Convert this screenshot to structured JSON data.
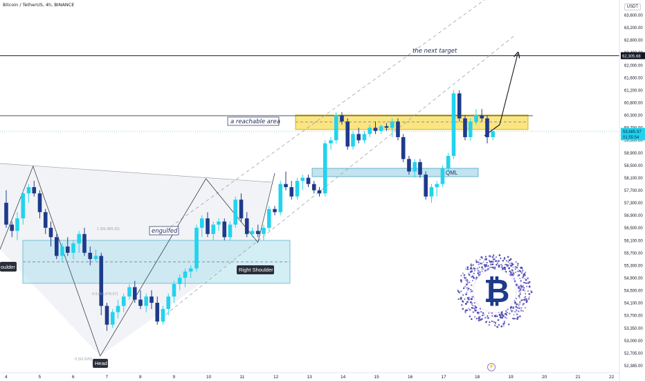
{
  "header": {
    "symbol": "Bitcoin / TetherUS, 4h, BINANCE",
    "currency": "USDT"
  },
  "price_tags": {
    "target": "62,305.68",
    "current": "59,885.97",
    "countdown": "01:55:54"
  },
  "annotations": {
    "next_target": "the next target",
    "reachable_area": "a reachable area",
    "engulfed": "engulfed",
    "qml": "QML",
    "head": "Head",
    "right_shoulder": "Right Shoulder",
    "left_shoulder": "oulder",
    "fib_top": "1 (56,483.32)",
    "fib_mid": "0.5 (54,479.37)",
    "fib_bottom": "0 (52,520)"
  },
  "logo": {
    "glyph": "₿",
    "name": "bitcoin-logo"
  },
  "colors": {
    "up": "#22d3ee",
    "down": "#1e3a8a",
    "reachable_zone": "#f9e06b",
    "qml_zone": "#a7d8ea",
    "shoulder_zone": "#b6e2ef",
    "target_line": "#131722",
    "trend": "#9aa0a6"
  },
  "chart_data": {
    "type": "candlestick",
    "x_ticks": [
      "4",
      "5",
      "6",
      "7",
      "8",
      "9",
      "10",
      "11",
      "12",
      "13",
      "14",
      "15",
      "16",
      "17",
      "18",
      "19",
      "20",
      "21",
      "22"
    ],
    "y_ticks": [
      "63,600.00",
      "63,200.00",
      "62,800.00",
      "62,400.00",
      "62,000.00",
      "61,600.00",
      "61,200.00",
      "60,800.00",
      "60,300.00",
      "59,700.00",
      "59,300.00",
      "58,900.00",
      "58,500.00",
      "58,100.00",
      "57,700.00",
      "57,300.00",
      "56,900.00",
      "56,500.00",
      "56,100.00",
      "55,700.00",
      "55,300.00",
      "54,900.00",
      "54,500.00",
      "54,100.00",
      "53,700.00",
      "53,350.00",
      "53,000.00",
      "52,705.00",
      "52,385.00"
    ],
    "ylim": [
      52385,
      63600
    ],
    "candles": [
      [
        4.0,
        57600,
        58000,
        56800,
        56900
      ],
      [
        4.17,
        56900,
        57000,
        56500,
        56700
      ],
      [
        4.33,
        56700,
        57300,
        56400,
        57100
      ],
      [
        4.5,
        57100,
        58000,
        56900,
        57900
      ],
      [
        4.67,
        57900,
        58200,
        57600,
        58100
      ],
      [
        4.83,
        58100,
        58300,
        57800,
        57900
      ],
      [
        5.0,
        57900,
        58000,
        57100,
        57300
      ],
      [
        5.17,
        57300,
        57400,
        56600,
        56800
      ],
      [
        5.33,
        56800,
        57000,
        56200,
        56500
      ],
      [
        5.5,
        56500,
        56600,
        55800,
        55900
      ],
      [
        5.67,
        55900,
        56300,
        55700,
        56200
      ],
      [
        5.83,
        56200,
        56500,
        55900,
        56000
      ],
      [
        6.0,
        56000,
        56400,
        55800,
        56300
      ],
      [
        6.17,
        56300,
        56700,
        56000,
        56600
      ],
      [
        6.33,
        56600,
        56800,
        55900,
        56000
      ],
      [
        6.5,
        56000,
        56200,
        55600,
        55800
      ],
      [
        6.67,
        55800,
        56100,
        55700,
        55900
      ],
      [
        6.83,
        55900,
        56000,
        54000,
        54300
      ],
      [
        7.0,
        54300,
        54400,
        53500,
        53700
      ],
      [
        7.17,
        53700,
        54200,
        53600,
        54100
      ],
      [
        7.33,
        54100,
        54500,
        53900,
        54300
      ],
      [
        7.5,
        54300,
        54700,
        54100,
        54600
      ],
      [
        7.67,
        54600,
        55000,
        54500,
        54900
      ],
      [
        7.83,
        54900,
        55100,
        54400,
        54500
      ],
      [
        8.0,
        54500,
        54800,
        54200,
        54300
      ],
      [
        8.17,
        54300,
        54700,
        54100,
        54600
      ],
      [
        8.33,
        54600,
        54800,
        54200,
        54400
      ],
      [
        8.5,
        54400,
        54600,
        53700,
        53800
      ],
      [
        8.67,
        53800,
        54300,
        53700,
        54200
      ],
      [
        8.83,
        54200,
        54700,
        54000,
        54600
      ],
      [
        9.0,
        54600,
        55100,
        54400,
        55000
      ],
      [
        9.17,
        55000,
        55300,
        54800,
        55200
      ],
      [
        9.33,
        55200,
        55500,
        54900,
        55400
      ],
      [
        9.5,
        55400,
        55600,
        55200,
        55500
      ],
      [
        9.67,
        55500,
        56900,
        55400,
        56800
      ],
      [
        9.83,
        56800,
        57200,
        56500,
        57100
      ],
      [
        10.0,
        57100,
        57300,
        56500,
        56600
      ],
      [
        10.17,
        56600,
        57000,
        56400,
        56900
      ],
      [
        10.33,
        56900,
        57100,
        56700,
        57000
      ],
      [
        10.5,
        57000,
        57100,
        56400,
        56500
      ],
      [
        10.67,
        56500,
        57000,
        56400,
        56900
      ],
      [
        10.83,
        56900,
        57800,
        56800,
        57700
      ],
      [
        11.0,
        57700,
        57900,
        57000,
        57100
      ],
      [
        11.17,
        57100,
        57300,
        56500,
        56600
      ],
      [
        11.33,
        56600,
        56800,
        56500,
        56700
      ],
      [
        11.5,
        56700,
        56900,
        56500,
        56600
      ],
      [
        11.67,
        56600,
        56900,
        56400,
        56800
      ],
      [
        11.83,
        56800,
        57500,
        56700,
        57400
      ],
      [
        12.0,
        57400,
        57500,
        57200,
        57300
      ],
      [
        12.17,
        57300,
        58300,
        57200,
        58200
      ],
      [
        12.33,
        58200,
        58600,
        58000,
        58100
      ],
      [
        12.5,
        58100,
        58300,
        57700,
        57800
      ],
      [
        12.67,
        57800,
        58400,
        57700,
        58300
      ],
      [
        12.83,
        58300,
        58500,
        58000,
        58400
      ],
      [
        13.0,
        58400,
        58500,
        58100,
        58200
      ],
      [
        13.17,
        58200,
        58300,
        57900,
        58000
      ],
      [
        13.33,
        58000,
        58100,
        57800,
        57900
      ],
      [
        13.5,
        57900,
        59600,
        57800,
        59500
      ],
      [
        13.67,
        59500,
        59700,
        59300,
        59600
      ],
      [
        13.83,
        59600,
        60500,
        59500,
        60400
      ],
      [
        14.0,
        60400,
        60500,
        60100,
        60200
      ],
      [
        14.17,
        60200,
        60300,
        59300,
        59400
      ],
      [
        14.33,
        59400,
        59900,
        59300,
        59800
      ],
      [
        14.5,
        59800,
        60000,
        59500,
        59600
      ],
      [
        14.67,
        59600,
        59900,
        59500,
        59800
      ],
      [
        14.83,
        59800,
        60100,
        59700,
        60000
      ],
      [
        15.0,
        60000,
        60200,
        59800,
        59900
      ],
      [
        15.17,
        59900,
        60100,
        59800,
        60050
      ],
      [
        15.33,
        60050,
        60150,
        59900,
        60000
      ],
      [
        15.5,
        60000,
        60300,
        59700,
        60200
      ],
      [
        15.67,
        60200,
        60300,
        59600,
        59700
      ],
      [
        15.83,
        59700,
        59800,
        58900,
        59000
      ],
      [
        16.0,
        59000,
        59100,
        58500,
        58600
      ],
      [
        16.17,
        58600,
        59000,
        58400,
        58900
      ],
      [
        16.33,
        58900,
        59000,
        58400,
        58500
      ],
      [
        16.5,
        58500,
        58600,
        57700,
        57800
      ],
      [
        16.67,
        57800,
        58200,
        57600,
        58100
      ],
      [
        16.83,
        58100,
        58300,
        57800,
        58200
      ],
      [
        17.0,
        58200,
        58800,
        58100,
        58700
      ],
      [
        17.17,
        58700,
        59200,
        58600,
        59100
      ],
      [
        17.33,
        59100,
        61200,
        59000,
        61100
      ],
      [
        17.5,
        61100,
        61200,
        60200,
        60300
      ],
      [
        17.67,
        60300,
        60400,
        59600,
        59700
      ],
      [
        17.83,
        59700,
        60300,
        59600,
        60200
      ],
      [
        18.0,
        60200,
        60600,
        60100,
        60400
      ],
      [
        18.17,
        60400,
        60600,
        60200,
        60300
      ],
      [
        18.33,
        60300,
        60400,
        59500,
        59700
      ],
      [
        18.5,
        59700,
        59950,
        59600,
        59886
      ]
    ],
    "levels": {
      "target": 62305.68,
      "current": 59885.97
    }
  }
}
